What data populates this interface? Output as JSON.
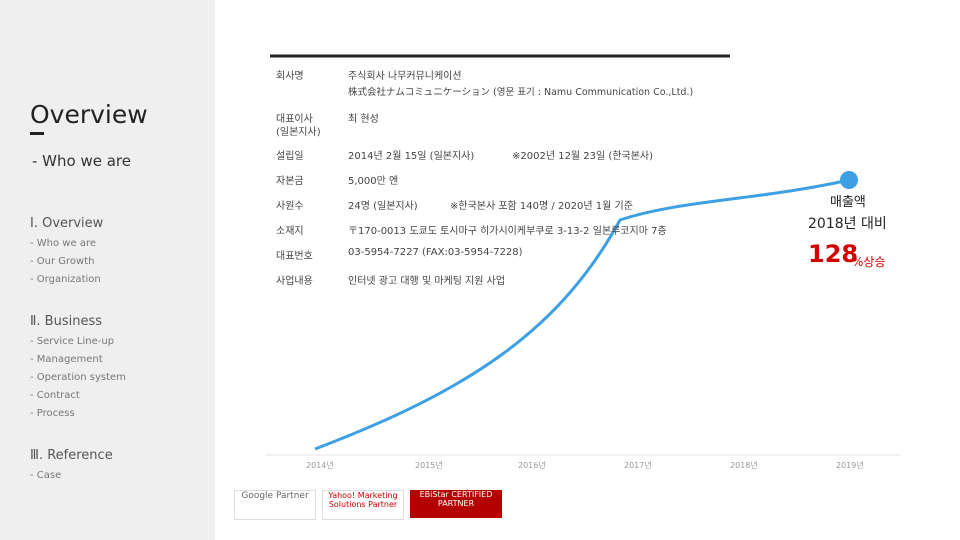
{
  "sidebar": {
    "title": "Overview",
    "subtitle": "- Who we are",
    "nav": [
      {
        "heading": "Ⅰ. Overview",
        "items": [
          "- Who we are",
          "- Our Growth",
          "- Organization"
        ]
      },
      {
        "heading": "Ⅱ. Business",
        "items": [
          "- Service Line-up",
          "- Management",
          "- Operation system",
          "- Contract",
          "- Process"
        ]
      },
      {
        "heading": "Ⅲ. Reference",
        "items": [
          "- Case"
        ]
      }
    ]
  },
  "table": {
    "rows": [
      {
        "label": [
          "회사명"
        ],
        "value": [
          "주식회사 나무커뮤니케이션"
        ]
      },
      {
        "label": [],
        "value": [
          "株式会社ナムコミュニケーション (영문 표기 : Namu Communication Co.,Ltd.)"
        ]
      },
      {
        "label": [
          "대표이사",
          "(일본지사)"
        ],
        "value": [
          "최 현성"
        ]
      },
      {
        "label": [
          "설립일"
        ],
        "value": [
          "2014년 2월 15일 (일본지사)",
          "※2002년 12월 23일 (한국본사)"
        ]
      },
      {
        "label": [
          "자본금"
        ],
        "value": [
          "5,000만 엔"
        ]
      },
      {
        "label": [
          "사원수"
        ],
        "value": [
          "24명 (일본지사)",
          "※한국본사 포함 140명 / 2020년 1월 기준"
        ]
      },
      {
        "label": [
          "소재지"
        ],
        "value": [
          "〒170-0013 도쿄도 토시마구 히가시이케부쿠로 3-13-2 일본루코지마 7층"
        ]
      },
      {
        "label": [
          "대표번호"
        ],
        "value": [
          "03-5954-7227 (FAX:03-5954-7228)"
        ]
      },
      {
        "label": [
          "사업내용"
        ],
        "value": [
          "인터넷 광고 대행 및 마케팅 지원 사업"
        ]
      }
    ]
  },
  "growth": {
    "years": [
      "2014년",
      "2015년",
      "2016년",
      "2017년",
      "2018년",
      "2019년"
    ],
    "label": "매출액",
    "compare": "2018년 대비",
    "rate": "128",
    "rate_suffix": "%상승"
  },
  "logos": [
    "Google Partner",
    "Yahoo! Marketing Solutions Partner",
    "EBiStar CERTIFIED PARTNER"
  ]
}
